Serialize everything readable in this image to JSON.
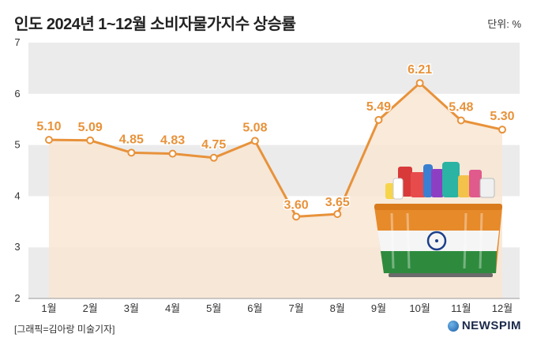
{
  "header": {
    "title": "인도 2024년 1~12월 소비자물가지수 상승률",
    "unit": "단위: %"
  },
  "footer": {
    "source": "[그래픽=김아랑 미술기자]",
    "brand": "NEWSPIM"
  },
  "colors": {
    "line": "#e8923a",
    "area": "#f8e6d4",
    "band": "#ebebeb",
    "label": "#e8923a"
  },
  "chart_data": {
    "type": "area",
    "title": "인도 2024년 1~12월 소비자물가지수 상승률",
    "ylabel": "단위: %",
    "categories": [
      "1월",
      "2월",
      "3월",
      "4월",
      "5월",
      "6월",
      "7월",
      "8월",
      "9월",
      "10월",
      "11월",
      "12월"
    ],
    "values": [
      5.1,
      5.09,
      4.85,
      4.83,
      4.75,
      5.08,
      3.6,
      3.65,
      5.49,
      6.21,
      5.48,
      5.3
    ],
    "value_labels": [
      "5.10",
      "5.09",
      "4.85",
      "4.83",
      "4.75",
      "5.08",
      "3.60",
      "3.65",
      "5.49",
      "6.21",
      "5.48",
      "5.30"
    ],
    "yticks": [
      "2",
      "3",
      "4",
      "5",
      "6",
      "7"
    ],
    "ylim": [
      2,
      7
    ]
  }
}
